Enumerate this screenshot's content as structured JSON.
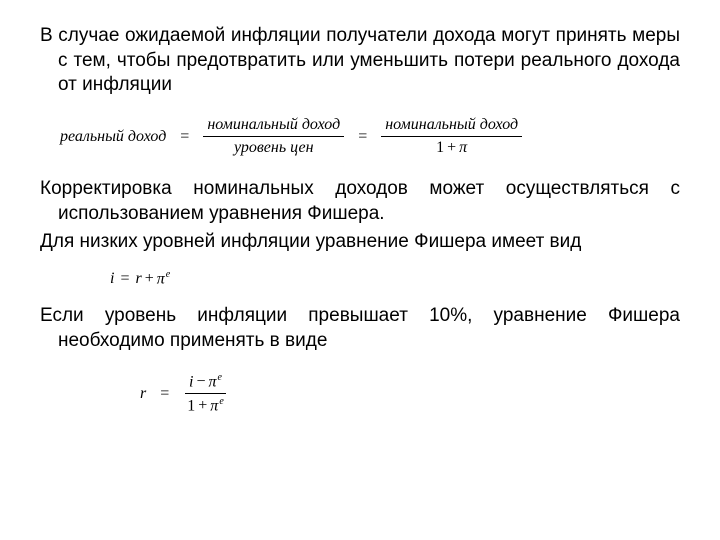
{
  "text": {
    "para1": "В случае ожидаемой инфляции получатели дохода могут принять меры с тем, чтобы предотвратить или уменьшить потери реального дохода от инфляции",
    "para2": "Корректировка номинальных доходов может осуществляться с использованием уравнения Фишера.",
    "para3": "Для низких уровней инфляции уравнение Фишера имеет вид",
    "para4": "Если уровень инфляции превышает 10%, уравнение Фишера необходимо применять в виде"
  },
  "formulas": {
    "f1": {
      "lhs": "реальный доход",
      "frac1_num": "номинальный доход",
      "frac1_den": "уровень цен",
      "frac2_num": "номинальный доход",
      "frac2_den_prefix": "1",
      "frac2_den_var": "π"
    },
    "f2": {
      "lhs_var": "i",
      "rhs_var1": "r",
      "rhs_var2": "π",
      "rhs_sup": "e"
    },
    "f3": {
      "lhs_var": "r",
      "num_var1": "i",
      "num_var2": "π",
      "num_sup": "e",
      "den_prefix": "1",
      "den_var": "π",
      "den_sup": "e"
    }
  },
  "style": {
    "body_fontsize": 19,
    "formula_fontsize": 16,
    "text_color": "#000000",
    "background_color": "#ffffff",
    "font_family_body": "Arial",
    "font_family_formula": "Times New Roman"
  }
}
